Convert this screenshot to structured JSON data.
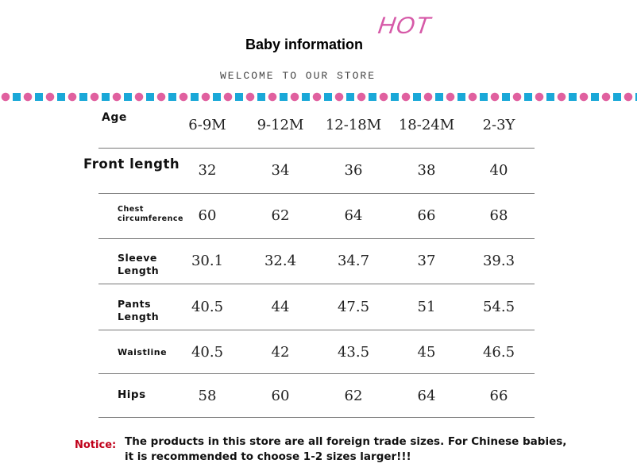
{
  "header": {
    "title": "Baby information",
    "hot_badge": "HOT",
    "subtitle": "WELCOME TO OUR STORE"
  },
  "colors": {
    "pink": "#e0609f",
    "blue": "#1aa8d8",
    "notice": "#c0001a"
  },
  "table": {
    "rows": [
      {
        "label": "Age",
        "values": [
          "6-9M",
          "9-12M",
          "12-18M",
          "18-24M",
          "2-3Y"
        ]
      },
      {
        "label": "Front length",
        "values": [
          "32",
          "34",
          "36",
          "38",
          "40"
        ]
      },
      {
        "label": "Chest circumference",
        "values": [
          "60",
          "62",
          "64",
          "66",
          "68"
        ]
      },
      {
        "label": "Sleeve Length",
        "values": [
          "30.1",
          "32.4",
          "34.7",
          "37",
          "39.3"
        ]
      },
      {
        "label": "Pants Length",
        "values": [
          "40.5",
          "44",
          "47.5",
          "51",
          "54.5"
        ]
      },
      {
        "label": "Waistline",
        "values": [
          "40.5",
          "42",
          "43.5",
          "45",
          "46.5"
        ]
      },
      {
        "label": "Hips",
        "values": [
          "58",
          "60",
          "62",
          "64",
          "66"
        ]
      }
    ]
  },
  "notice": {
    "label": "Notice:",
    "text": "The products in this store are all foreign trade sizes. For Chinese babies, it is recommended to choose 1-2 sizes larger!!!"
  }
}
